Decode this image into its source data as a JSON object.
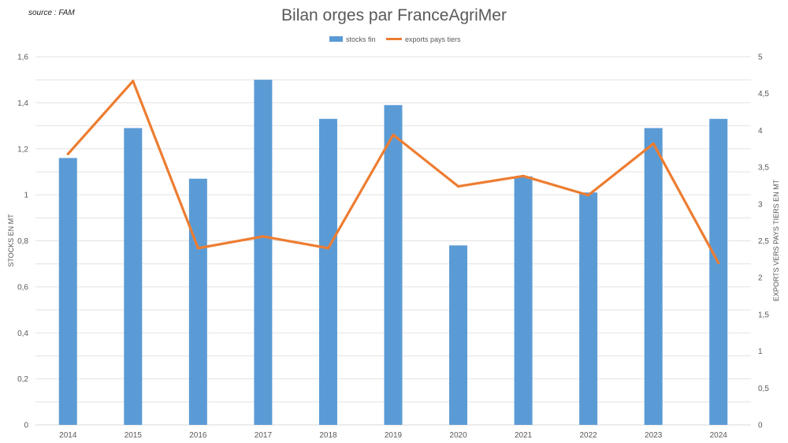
{
  "source_note": "source : FAM",
  "chart_data": {
    "type": "bar",
    "title": "Bilan orges par FranceAgriMer",
    "categories": [
      "2014",
      "2015",
      "2016",
      "2017",
      "2018",
      "2019",
      "2020",
      "2021",
      "2022",
      "2023",
      "2024"
    ],
    "series": [
      {
        "name": "stocks fin",
        "type": "bar",
        "axis": "left",
        "color": "#5b9bd5",
        "values": [
          1.16,
          1.29,
          1.07,
          1.5,
          1.33,
          1.39,
          0.78,
          1.08,
          1.01,
          1.29,
          1.33
        ]
      },
      {
        "name": "exports pays tiers",
        "type": "line",
        "axis": "right",
        "color": "#ed7d31",
        "values": [
          3.68,
          4.67,
          2.4,
          2.56,
          2.4,
          3.94,
          3.24,
          3.38,
          3.12,
          3.82,
          2.2
        ]
      }
    ],
    "ylabel": "STOCKS EN MT",
    "ylabel_right": "EXPORTS VERS PAYS TIERS EN MT",
    "ylim": [
      0,
      1.6
    ],
    "ylim_right": [
      0,
      5
    ],
    "yticks": [
      "0",
      "0,2",
      "0,4",
      "0,6",
      "0,8",
      "1",
      "1,2",
      "1,4",
      "1,6"
    ],
    "yticks_right": [
      "0",
      "0,5",
      "1",
      "1,5",
      "2",
      "2,5",
      "3",
      "3,5",
      "4",
      "4,5",
      "5"
    ],
    "legend_position": "top-center",
    "grid": true
  }
}
